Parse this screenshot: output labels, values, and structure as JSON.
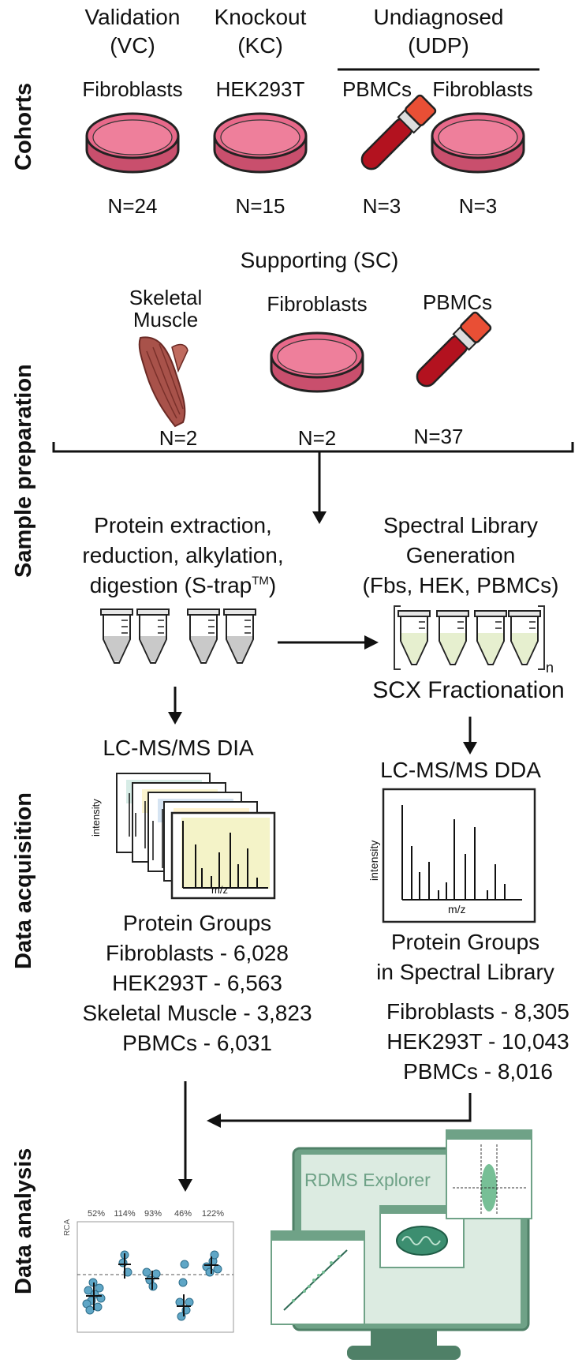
{
  "sections": {
    "cohorts": "Cohorts",
    "sample_prep": "Sample preparation",
    "data_acq": "Data acquisition",
    "data_analysis": "Data analysis"
  },
  "cohorts": {
    "vc": {
      "title": "Validation",
      "abbr": "(VC)",
      "sample": "Fibroblasts",
      "n": "N=24"
    },
    "kc": {
      "title": "Knockout",
      "abbr": "(KC)",
      "sample": "HEK293T",
      "n": "N=15"
    },
    "udp": {
      "title": "Undiagnosed",
      "abbr": "(UDP)",
      "sample1": "PBMCs",
      "sample2": "Fibroblasts",
      "n1": "N=3",
      "n2": "N=3"
    }
  },
  "supporting": {
    "title": "Supporting (SC)",
    "muscle": "Skeletal Muscle",
    "muscle_l1": "Skeletal",
    "muscle_l2": "Muscle",
    "fibro": "Fibroblasts",
    "pbmcs": "PBMCs",
    "n_muscle": "N=2",
    "n_fibro": "N=2",
    "n_pbmcs": "N=37"
  },
  "prep": {
    "left_l1": "Protein extraction,",
    "left_l2": "reduction, alkylation,",
    "left_l3": "digestion (S-trap",
    "left_tm": "TM",
    "left_l3_end": ")",
    "right_l1": "Spectral Library",
    "right_l2": "Generation",
    "right_l3": "(Fbs, HEK, PBMCs)",
    "n_sub": "n",
    "scx": "SCX Fractionation"
  },
  "acq": {
    "dia_title": "LC-MS/MS DIA",
    "dda_title": "LC-MS/MS DDA",
    "ylabel": "intensity",
    "xlabel": "m/z",
    "left": {
      "heading": "Protein Groups",
      "rows": [
        "Fibroblasts - 6,028",
        "HEK293T - 6,563",
        "Skeletal Muscle - 3,823",
        "PBMCs - 6,031"
      ]
    },
    "right": {
      "heading_l1": "Protein Groups",
      "heading_l2": "in Spectral Library",
      "rows": [
        "Fibroblasts - 8,305",
        "HEK293T - 10,043",
        "PBMCs - 8,016"
      ]
    }
  },
  "analysis": {
    "rca_label": "RCA",
    "percents": [
      "52%",
      "114%",
      "93%",
      "46%",
      "122%"
    ],
    "explorer": "RDMS Explorer"
  },
  "colors": {
    "dish": "#e8698a",
    "blood": "#b3121f",
    "cap": "#e94f35",
    "muscle": "#a8524a",
    "screen": "#6fa287",
    "screen_inner": "#dcebe1",
    "dot": "#5fa6c6"
  }
}
